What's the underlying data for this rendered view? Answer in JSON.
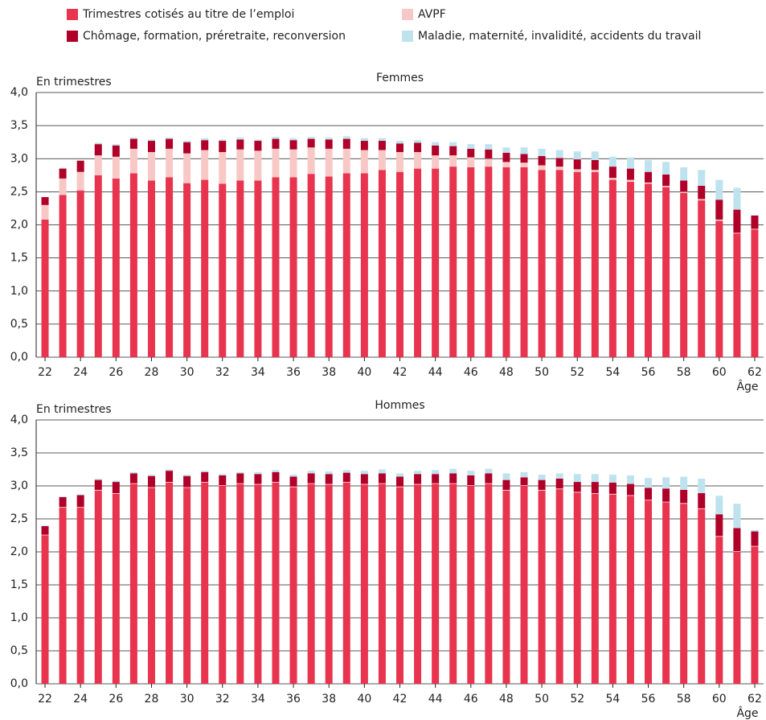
{
  "chart_data": [
    {
      "type": "bar",
      "stacked": true,
      "title": "Femmes",
      "y_label": "En trimestres",
      "x_label": "Âge",
      "categories": [
        "22",
        null,
        "24",
        null,
        "26",
        null,
        "28",
        null,
        "30",
        null,
        "32",
        null,
        "34",
        null,
        "36",
        null,
        "38",
        null,
        "40",
        null,
        "42",
        null,
        "44",
        null,
        "46",
        null,
        "48",
        null,
        "50",
        null,
        "52",
        null,
        "54",
        null,
        "56",
        null,
        "58",
        null,
        "60",
        null,
        "62"
      ],
      "series": [
        {
          "name": "Trimestres cotisés au titre de l’emploi",
          "color": "#e8344e",
          "values": [
            2.08,
            2.45,
            2.52,
            2.75,
            2.7,
            2.78,
            2.67,
            2.72,
            2.63,
            2.68,
            2.62,
            2.67,
            2.67,
            2.72,
            2.72,
            2.77,
            2.73,
            2.78,
            2.78,
            2.83,
            2.8,
            2.85,
            2.85,
            2.88,
            2.87,
            2.88,
            2.87,
            2.87,
            2.83,
            2.83,
            2.8,
            2.8,
            2.68,
            2.65,
            2.62,
            2.57,
            2.48,
            2.37,
            2.06,
            1.87,
            1.93
          ]
        },
        {
          "name": "AVPF",
          "color": "#f8c8c6",
          "values": [
            0.22,
            0.25,
            0.28,
            0.3,
            0.33,
            0.37,
            0.43,
            0.43,
            0.45,
            0.45,
            0.48,
            0.47,
            0.45,
            0.43,
            0.42,
            0.4,
            0.42,
            0.37,
            0.35,
            0.3,
            0.3,
            0.25,
            0.2,
            0.17,
            0.15,
            0.12,
            0.08,
            0.07,
            0.07,
            0.05,
            0.04,
            0.03,
            0.03,
            0.03,
            0.02,
            0.02,
            0.02,
            0.02,
            0.02,
            0.01,
            0.01
          ]
        },
        {
          "name": "Chômage, formation, préretraite, reconversion",
          "color": "#b0002a",
          "values": [
            0.12,
            0.15,
            0.17,
            0.17,
            0.17,
            0.15,
            0.17,
            0.15,
            0.17,
            0.15,
            0.17,
            0.15,
            0.15,
            0.15,
            0.14,
            0.13,
            0.14,
            0.15,
            0.14,
            0.14,
            0.13,
            0.14,
            0.15,
            0.14,
            0.13,
            0.14,
            0.14,
            0.13,
            0.14,
            0.13,
            0.15,
            0.15,
            0.17,
            0.17,
            0.16,
            0.17,
            0.17,
            0.2,
            0.3,
            0.35,
            0.2
          ]
        },
        {
          "name": "Maladie, maternité, invalidité, accidents du travail",
          "color": "#bfe3ee",
          "values": [
            0,
            0.01,
            0.01,
            0.02,
            0.02,
            0.02,
            0.02,
            0.02,
            0.02,
            0.03,
            0.02,
            0.03,
            0.02,
            0.03,
            0.03,
            0.03,
            0.03,
            0.04,
            0.04,
            0.04,
            0.04,
            0.04,
            0.05,
            0.06,
            0.07,
            0.08,
            0.08,
            0.1,
            0.11,
            0.12,
            0.12,
            0.13,
            0.15,
            0.17,
            0.18,
            0.19,
            0.2,
            0.24,
            0.3,
            0.33,
            0.01
          ]
        }
      ],
      "ylim": [
        0,
        4
      ],
      "yticks": [
        {
          "value": 0,
          "label": "0,0"
        },
        {
          "value": 0.5,
          "label": "0,5"
        },
        {
          "value": 1,
          "label": "1,0"
        },
        {
          "value": 1.5,
          "label": "1,5"
        },
        {
          "value": 2,
          "label": "2,0"
        },
        {
          "value": 2.5,
          "label": "2,5"
        },
        {
          "value": 3,
          "label": "3,0"
        },
        {
          "value": 3.5,
          "label": "3,5"
        },
        {
          "value": 4,
          "label": "4,0"
        }
      ],
      "grid": true
    },
    {
      "type": "bar",
      "stacked": true,
      "title": "Hommes",
      "y_label": "En trimestres",
      "x_label": "Âge",
      "categories": [
        "22",
        null,
        "24",
        null,
        "26",
        null,
        "28",
        null,
        "30",
        null,
        "32",
        null,
        "34",
        null,
        "36",
        null,
        "38",
        null,
        "40",
        null,
        "42",
        null,
        "44",
        null,
        "46",
        null,
        "48",
        null,
        "50",
        null,
        "52",
        null,
        "54",
        null,
        "56",
        null,
        "58",
        null,
        "60",
        null,
        "62"
      ],
      "series": [
        {
          "color": "#e8344e",
          "values": [
            2.25,
            2.67,
            2.67,
            2.93,
            2.88,
            3.03,
            2.97,
            3.05,
            2.97,
            3.05,
            3.0,
            3.03,
            3.02,
            3.05,
            2.98,
            3.03,
            3.02,
            3.05,
            3.02,
            3.03,
            2.98,
            3.02,
            3.03,
            3.03,
            3.0,
            3.03,
            2.93,
            3.0,
            2.93,
            2.95,
            2.9,
            2.88,
            2.87,
            2.85,
            2.78,
            2.75,
            2.73,
            2.65,
            2.23,
            2.0,
            2.08
          ]
        },
        {
          "color": "#f8c8c6",
          "values": [
            0.01,
            0.01,
            0.01,
            0.01,
            0.01,
            0.01,
            0.01,
            0.01,
            0.01,
            0.01,
            0.01,
            0.01,
            0.01,
            0.01,
            0.01,
            0.01,
            0.01,
            0.01,
            0.01,
            0.01,
            0.01,
            0.01,
            0.01,
            0.01,
            0.01,
            0.01,
            0.01,
            0.01,
            0.01,
            0.01,
            0.01,
            0.01,
            0.01,
            0.01,
            0.01,
            0.01,
            0.01,
            0.01,
            0.01,
            0.01,
            0.01
          ]
        },
        {
          "color": "#b0002a",
          "values": [
            0.13,
            0.15,
            0.18,
            0.15,
            0.17,
            0.15,
            0.17,
            0.17,
            0.17,
            0.15,
            0.15,
            0.15,
            0.15,
            0.15,
            0.15,
            0.15,
            0.15,
            0.14,
            0.15,
            0.15,
            0.15,
            0.15,
            0.14,
            0.15,
            0.15,
            0.15,
            0.15,
            0.12,
            0.15,
            0.15,
            0.15,
            0.17,
            0.17,
            0.17,
            0.18,
            0.2,
            0.2,
            0.23,
            0.33,
            0.35,
            0.22
          ]
        },
        {
          "color": "#bfe3ee",
          "values": [
            0.01,
            0.01,
            0.01,
            0.02,
            0.02,
            0.02,
            0.02,
            0.02,
            0.02,
            0.02,
            0.02,
            0.02,
            0.03,
            0.03,
            0.03,
            0.04,
            0.04,
            0.04,
            0.05,
            0.06,
            0.05,
            0.05,
            0.06,
            0.07,
            0.07,
            0.07,
            0.1,
            0.08,
            0.08,
            0.08,
            0.12,
            0.12,
            0.12,
            0.13,
            0.15,
            0.17,
            0.2,
            0.22,
            0.28,
            0.37,
            0.02
          ]
        }
      ],
      "ylim": [
        0,
        4
      ],
      "yticks": [
        {
          "value": 0,
          "label": "0,0"
        },
        {
          "value": 0.5,
          "label": "0,5"
        },
        {
          "value": 1,
          "label": "1,0"
        },
        {
          "value": 1.5,
          "label": "1,5"
        },
        {
          "value": 2,
          "label": "2,0"
        },
        {
          "value": 2.5,
          "label": "2,5"
        },
        {
          "value": 3,
          "label": "3,0"
        },
        {
          "value": 3.5,
          "label": "3,5"
        },
        {
          "value": 4,
          "label": "4,0"
        }
      ],
      "grid": true
    }
  ]
}
